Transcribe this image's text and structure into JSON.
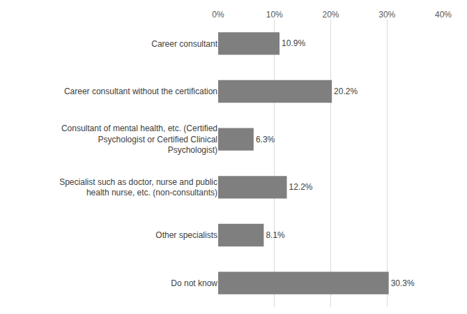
{
  "chart_data": {
    "type": "bar",
    "orientation": "horizontal",
    "categories": [
      "Career consultant",
      "Career consultant without the certification",
      "Consultant of mental health, etc. (Certified Psychologist or Certified Clinical Psychologist)",
      "Specialist such as doctor, nurse and public health nurse, etc. (non-consultants)",
      "Other specialists",
      "Do not know"
    ],
    "values": [
      10.9,
      20.2,
      6.3,
      12.2,
      8.1,
      30.3
    ],
    "value_labels": [
      "10.9%",
      "20.2%",
      "6.3%",
      "12.2%",
      "8.1%",
      "30.3%"
    ],
    "data_labels": true,
    "color": "#7f7f7f",
    "xlim": [
      0,
      40
    ],
    "xticks": [
      {
        "value": 0,
        "label": "0%"
      },
      {
        "value": 10,
        "label": "10%"
      },
      {
        "value": 20,
        "label": "20%"
      },
      {
        "value": 30,
        "label": "30%"
      },
      {
        "value": 40,
        "label": "40%"
      }
    ],
    "grid": true
  }
}
